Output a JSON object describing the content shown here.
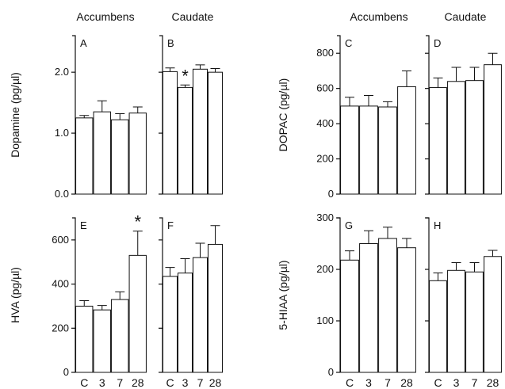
{
  "region_labels": {
    "left_accumbens": "Accumbens",
    "left_caudate": "Caudate",
    "right_accumbens": "Accumbens",
    "right_caudate": "Caudate"
  },
  "chart_data": [
    {
      "type": "bar",
      "label": "A",
      "region": "Accumbens",
      "ylabel": "Dopamine  (pg/µl)",
      "ylim": [
        0,
        2.6
      ],
      "yticks": [
        "0.0",
        "1.0",
        "2.0"
      ],
      "ytick_values": [
        0,
        1,
        2
      ],
      "categories": [
        "C",
        "3",
        "7",
        "28"
      ],
      "values": [
        1.25,
        1.35,
        1.22,
        1.33
      ],
      "errors": [
        0.04,
        0.18,
        0.1,
        0.1
      ],
      "significant": []
    },
    {
      "type": "bar",
      "label": "B",
      "region": "Caudate",
      "ylabel": "",
      "ylim": [
        0,
        2.6
      ],
      "yticks": [],
      "ytick_values": [
        0,
        1,
        2
      ],
      "categories": [
        "C",
        "3",
        "7",
        "28"
      ],
      "values": [
        2.01,
        1.75,
        2.05,
        2.0
      ],
      "errors": [
        0.06,
        0.04,
        0.07,
        0.06
      ],
      "significant": [
        1
      ],
      "sig_marker": "*"
    },
    {
      "type": "bar",
      "label": "C",
      "region": "Accumbens",
      "ylabel": "DOPAC  (pg/µl)",
      "ylim": [
        0,
        900
      ],
      "yticks": [
        "0",
        "200",
        "400",
        "600",
        "800"
      ],
      "ytick_values": [
        0,
        200,
        400,
        600,
        800
      ],
      "categories": [
        "C",
        "3",
        "7",
        "28"
      ],
      "values": [
        500,
        500,
        495,
        610
      ],
      "errors": [
        50,
        60,
        30,
        90
      ],
      "significant": []
    },
    {
      "type": "bar",
      "label": "D",
      "region": "Caudate",
      "ylabel": "",
      "ylim": [
        0,
        900
      ],
      "yticks": [],
      "ytick_values": [
        0,
        200,
        400,
        600,
        800
      ],
      "categories": [
        "C",
        "3",
        "7",
        "28"
      ],
      "values": [
        605,
        640,
        645,
        735
      ],
      "errors": [
        55,
        80,
        75,
        65
      ],
      "significant": []
    },
    {
      "type": "bar",
      "label": "E",
      "region": "Accumbens",
      "ylabel": "HVA  (pg/µl)",
      "ylim": [
        0,
        700
      ],
      "yticks": [
        "0",
        "200",
        "400",
        "600"
      ],
      "ytick_values": [
        0,
        200,
        400,
        600
      ],
      "categories": [
        "C",
        "3",
        "7",
        "28"
      ],
      "xticks": [
        "C",
        "3",
        "7",
        "28"
      ],
      "values": [
        300,
        283,
        330,
        530
      ],
      "errors": [
        25,
        20,
        35,
        110
      ],
      "significant": [
        3
      ],
      "sig_marker": "*"
    },
    {
      "type": "bar",
      "label": "F",
      "region": "Caudate",
      "ylabel": "",
      "ylim": [
        0,
        700
      ],
      "yticks": [],
      "ytick_values": [
        0,
        200,
        400,
        600
      ],
      "categories": [
        "C",
        "3",
        "7",
        "28"
      ],
      "xticks": [
        "C",
        "3",
        "7",
        "28"
      ],
      "values": [
        435,
        450,
        520,
        580
      ],
      "errors": [
        40,
        65,
        65,
        85
      ],
      "significant": []
    },
    {
      "type": "bar",
      "label": "G",
      "region": "Accumbens",
      "ylabel": "5-HIAA  (pg/µl)",
      "ylim": [
        0,
        300
      ],
      "yticks": [
        "0",
        "100",
        "200",
        "300"
      ],
      "ytick_values": [
        0,
        100,
        200,
        300
      ],
      "categories": [
        "C",
        "3",
        "7",
        "28"
      ],
      "xticks": [
        "C",
        "3",
        "7",
        "28"
      ],
      "values": [
        218,
        250,
        260,
        242
      ],
      "errors": [
        18,
        25,
        22,
        18
      ],
      "significant": []
    },
    {
      "type": "bar",
      "label": "H",
      "region": "Caudate",
      "ylabel": "",
      "ylim": [
        0,
        300
      ],
      "yticks": [],
      "ytick_values": [
        0,
        100,
        200,
        300
      ],
      "categories": [
        "C",
        "3",
        "7",
        "28"
      ],
      "xticks": [
        "C",
        "3",
        "7",
        "28"
      ],
      "values": [
        178,
        198,
        195,
        225
      ],
      "errors": [
        15,
        15,
        18,
        12
      ],
      "significant": []
    }
  ]
}
